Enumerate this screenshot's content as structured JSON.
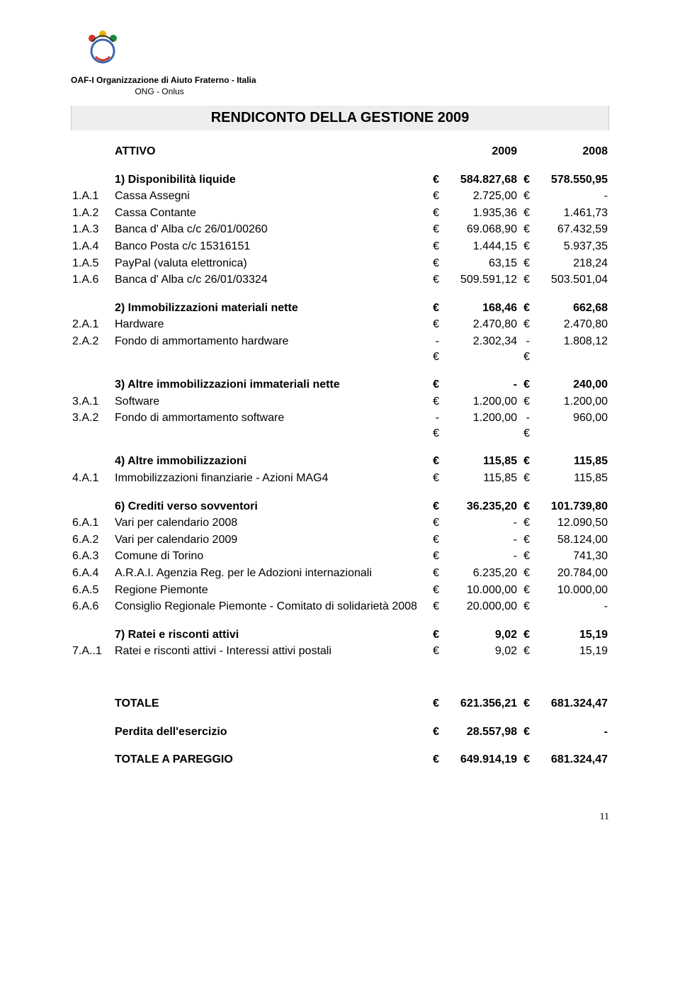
{
  "header": {
    "org_line": "OAF-I  Organizzazione di Aiuto Fraterno - Italia",
    "org_sub": "ONG - Onlus",
    "title": "RENDICONTO DELLA GESTIONE 2009"
  },
  "columns": {
    "attivo": "ATTIVO",
    "year_current": "2009",
    "year_prior": "2008"
  },
  "currency": "€",
  "sections": [
    {
      "header": {
        "label": "1) Disponibilità liquide",
        "v1": "584.827,68",
        "v2": "578.550,95"
      },
      "rows": [
        {
          "code": "1.A.1",
          "label": "Cassa Assegni",
          "v1": "2.725,00",
          "v2": "-"
        },
        {
          "code": "1.A.2",
          "label": "Cassa Contante",
          "v1": "1.935,36",
          "v2": "1.461,73"
        },
        {
          "code": "1.A.3",
          "label": "Banca d' Alba c/c 26/01/00260",
          "v1": "69.068,90",
          "v2": "67.432,59"
        },
        {
          "code": "1.A.4",
          "label": "Banco Posta c/c 15316151",
          "v1": "1.444,15",
          "v2": "5.937,35"
        },
        {
          "code": "1.A.5",
          "label": "PayPal (valuta elettronica)",
          "v1": "63,15",
          "v2": "218,24"
        },
        {
          "code": "1.A.6",
          "label": "Banca d' Alba c/c 26/01/03324",
          "v1": "509.591,12",
          "v2": "503.501,04"
        }
      ]
    },
    {
      "header": {
        "label": "2) Immobilizzazioni materiali nette",
        "v1": "168,46",
        "v2": "662,68"
      },
      "rows": [
        {
          "code": "2.A.1",
          "label": "Hardware",
          "v1": "2.470,80",
          "v2": "2.470,80"
        },
        {
          "code": "2.A.2",
          "label": "Fondo di ammortamento hardware",
          "c1": "- €",
          "v1": "2.302,34",
          "c2": "- €",
          "v2": "1.808,12"
        }
      ]
    },
    {
      "header": {
        "label": "3) Altre immobilizzazioni immateriali nette",
        "v1": "-",
        "v2": "240,00"
      },
      "rows": [
        {
          "code": "3.A.1",
          "label": "Software",
          "v1": "1.200,00",
          "v2": "1.200,00"
        },
        {
          "code": "3.A.2",
          "label": "Fondo di ammortamento software",
          "c1": "- €",
          "v1": "1.200,00",
          "c2": "- €",
          "v2": "960,00"
        }
      ]
    },
    {
      "header": {
        "label": "4) Altre immobilizzazioni",
        "v1": "115,85",
        "v2": "115,85"
      },
      "rows": [
        {
          "code": "4.A.1",
          "label": "Immobilizzazioni finanziarie - Azioni MAG4",
          "v1": "115,85",
          "v2": "115,85"
        }
      ]
    },
    {
      "header": {
        "label": "6) Crediti verso sovventori",
        "v1": "36.235,20",
        "v2": "101.739,80"
      },
      "rows": [
        {
          "code": "6.A.1",
          "label": "Vari per calendario 2008",
          "v1": "-",
          "v2": "12.090,50"
        },
        {
          "code": "6.A.2",
          "label": "Vari per calendario 2009",
          "v1": "-",
          "v2": "58.124,00"
        },
        {
          "code": "6.A.3",
          "label": "Comune di Torino",
          "v1": "-",
          "v2": "741,30"
        },
        {
          "code": "6.A.4",
          "label": "A.R.A.I.  Agenzia Reg. per le Adozioni internazionali",
          "v1": "6.235,20",
          "v2": "20.784,00"
        },
        {
          "code": "6.A.5",
          "label": "Regione Piemonte",
          "v1": "10.000,00",
          "v2": "10.000,00"
        },
        {
          "code": "6.A.6",
          "label": "Consiglio Regionale Piemonte - Comitato di solidarietà 2008",
          "v1": "20.000,00",
          "v2": "-"
        }
      ]
    },
    {
      "header": {
        "label": "7) Ratei e risconti attivi",
        "v1": "9,02",
        "v2": "15,19"
      },
      "rows": [
        {
          "code": "7.A..1",
          "label": "Ratei e risconti attivi - Interessi attivi postali",
          "v1": "9,02",
          "v2": "15,19"
        }
      ]
    }
  ],
  "totals": [
    {
      "label": "TOTALE",
      "v1": "621.356,21",
      "v2": "681.324,47"
    },
    {
      "label": "Perdita dell'esercizio",
      "v1": "28.557,98",
      "v2": "-"
    },
    {
      "label": "TOTALE A PAREGGIO",
      "v1": "649.914,19",
      "v2": "681.324,47"
    }
  ],
  "page_number": "11"
}
